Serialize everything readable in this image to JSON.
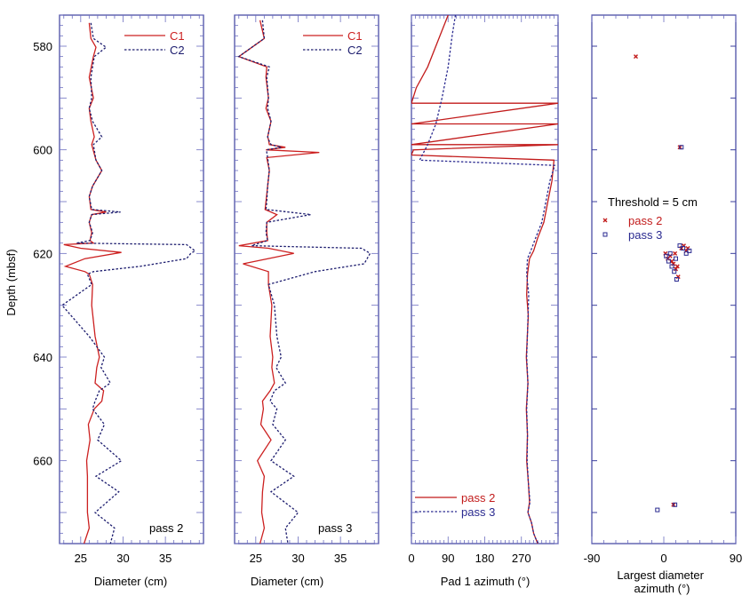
{
  "colors": {
    "frame": "#3c3f9e",
    "tick": "#6c6ec0",
    "c1": "#cc2020",
    "c2": "#1c1c6e",
    "pass2": "#c21b1b",
    "pass3": "#2a2a90",
    "text": "#000000"
  },
  "chart_data": [
    {
      "type": "line",
      "panel": "caliper-pass-2",
      "xlabel": "Diameter (cm)",
      "ylabel": "Depth (mbsf)",
      "xlim": [
        22.5,
        39.5
      ],
      "ylim": [
        676,
        574
      ],
      "xticks": [
        "25",
        "30",
        "35"
      ],
      "yticks": [
        "580",
        "600",
        "620",
        "640",
        "660"
      ],
      "legend": [
        "C1",
        "C2"
      ],
      "annotation": "pass 2",
      "series": [
        {
          "name": "C1",
          "x": [
            26.0,
            26.2,
            26.8,
            26.5,
            26.0,
            26.5,
            26.0,
            26.2,
            26.6,
            26.3,
            26.8,
            27.5,
            26.4,
            26.0,
            26.2,
            28.0,
            26.3,
            26.0,
            26.3,
            26.1,
            26.5,
            23.0,
            25.0,
            29.8,
            25.5,
            23.2,
            25.5,
            26.0,
            26.4,
            26.3,
            26.7,
            27.2,
            26.9,
            26.7,
            27.7,
            27.5,
            26.6,
            25.9,
            26.1,
            25.7,
            25.8,
            25.8,
            25.8,
            26.0,
            25.4
          ],
          "y": [
            575.5,
            578.5,
            580.2,
            582.0,
            586.0,
            590.0,
            592.0,
            594.5,
            597.5,
            599.0,
            602.0,
            604.0,
            607.0,
            609.0,
            611.5,
            612.0,
            612.5,
            614.0,
            616.0,
            617.5,
            618.0,
            618.3,
            619.0,
            619.8,
            621.0,
            622.5,
            623.5,
            624.0,
            626.0,
            630.0,
            636.0,
            640.0,
            642.0,
            645.0,
            646.5,
            648.5,
            650.0,
            653.0,
            656.0,
            660.0,
            663.0,
            666.0,
            670.0,
            673.0,
            676.0
          ]
        },
        {
          "name": "C2",
          "x": [
            26.2,
            26.5,
            28.0,
            26.6,
            26.2,
            26.3,
            26.0,
            26.4,
            27.5,
            26.5,
            26.8,
            27.5,
            26.4,
            26.0,
            26.3,
            29.7,
            26.3,
            26.0,
            26.4,
            26.1,
            24.5,
            37.5,
            38.5,
            38.0,
            37.5,
            32.0,
            26.5,
            25.8,
            26.3,
            22.8,
            26.0,
            27.8,
            27.4,
            28.5,
            27.2,
            26.7,
            26.4,
            27.8,
            27.0,
            29.8,
            26.8,
            29.5,
            26.7,
            29.0,
            28.5
          ],
          "y": [
            575.5,
            578.5,
            580.2,
            582.0,
            586.0,
            590.0,
            592.0,
            594.5,
            597.5,
            599.0,
            602.0,
            604.0,
            607.0,
            609.0,
            611.5,
            612.0,
            612.5,
            614.0,
            616.0,
            617.5,
            618.0,
            618.3,
            619.5,
            620.0,
            621.0,
            622.5,
            623.5,
            624.0,
            626.0,
            630.0,
            636.0,
            640.0,
            642.0,
            645.0,
            646.5,
            648.5,
            650.0,
            653.0,
            656.0,
            660.0,
            663.0,
            666.0,
            670.0,
            673.0,
            676.0
          ]
        }
      ]
    },
    {
      "type": "line",
      "panel": "caliper-pass-3",
      "xlabel": "Diameter (cm)",
      "xlim": [
        22.5,
        39.5
      ],
      "ylim": [
        676,
        574
      ],
      "xticks": [
        "25",
        "30",
        "35"
      ],
      "legend": [
        "C1",
        "C2"
      ],
      "annotation": "pass 3",
      "series": [
        {
          "name": "C1",
          "x": [
            25.5,
            26.0,
            23.0,
            26.3,
            26.2,
            26.5,
            26.2,
            26.8,
            26.4,
            26.5,
            26.6,
            28.5,
            26.2,
            32.5,
            26.3,
            26.6,
            26.4,
            26.2,
            26.1,
            27.5,
            26.3,
            26.3,
            26.4,
            23.0,
            26.5,
            29.5,
            23.5,
            26.5,
            26.5,
            26.9,
            26.7,
            27.0,
            26.9,
            27.2,
            26.7,
            25.8,
            25.9,
            25.6,
            26.8,
            25.2,
            26.0,
            25.8,
            25.7,
            26.0,
            25.5
          ],
          "y": [
            575.0,
            578.5,
            582.0,
            584.0,
            586.0,
            590.0,
            592.0,
            594.5,
            597.5,
            598.0,
            599.0,
            599.5,
            600.0,
            600.5,
            601.5,
            604.0,
            607.0,
            610.0,
            611.5,
            612.5,
            614.0,
            616.0,
            617.5,
            618.5,
            619.0,
            620.0,
            622.0,
            623.5,
            626.0,
            630.0,
            636.0,
            640.0,
            642.0,
            645.0,
            646.5,
            648.5,
            650.0,
            653.0,
            656.0,
            660.0,
            663.0,
            666.0,
            670.0,
            673.0,
            676.0
          ]
        },
        {
          "name": "C2",
          "x": [
            25.8,
            26.0,
            23.0,
            26.6,
            26.3,
            26.5,
            26.4,
            26.8,
            26.4,
            26.5,
            26.8,
            28.0,
            26.3,
            26.3,
            26.4,
            26.6,
            26.4,
            26.3,
            26.2,
            31.5,
            26.3,
            26.2,
            26.4,
            24.5,
            37.5,
            38.5,
            37.8,
            32.0,
            26.5,
            27.2,
            27.5,
            28.0,
            27.4,
            28.5,
            27.2,
            26.7,
            27.5,
            27.0,
            28.5,
            26.8,
            29.5,
            26.8,
            30.0,
            28.5,
            28.8
          ],
          "y": [
            575.0,
            578.5,
            582.0,
            584.0,
            586.0,
            590.0,
            592.0,
            594.5,
            597.5,
            598.0,
            599.0,
            599.5,
            600.0,
            600.5,
            601.5,
            604.0,
            607.0,
            610.0,
            611.5,
            612.5,
            614.0,
            616.0,
            617.5,
            618.5,
            619.0,
            620.0,
            622.0,
            623.5,
            626.0,
            630.0,
            636.0,
            640.0,
            642.0,
            645.0,
            646.5,
            648.5,
            650.0,
            653.0,
            656.0,
            660.0,
            663.0,
            666.0,
            670.0,
            673.0,
            676.0
          ]
        }
      ]
    },
    {
      "type": "line",
      "panel": "pad-1-azimuth",
      "xlabel": "Pad 1 azimuth (°)",
      "xlim": [
        0,
        360
      ],
      "ylim": [
        676,
        574
      ],
      "xticks": [
        "0",
        "90",
        "180",
        "270"
      ],
      "legend": [
        "pass 2",
        "pass 3"
      ],
      "series": [
        {
          "name": "pass 2",
          "x": [
            90,
            70,
            40,
            12,
            0,
            360,
            0,
            360,
            0,
            360,
            5,
            0,
            350,
            345,
            335,
            325,
            310,
            300,
            290,
            285,
            283,
            287,
            282,
            286,
            282,
            285,
            283,
            287,
            290,
            286,
            295,
            300,
            305,
            310
          ],
          "y": [
            574.0,
            578.0,
            584.0,
            588.0,
            591.0,
            591.0,
            595.0,
            595.0,
            599.0,
            599.0,
            600.0,
            601.0,
            602.0,
            606.0,
            610.0,
            614.0,
            617.0,
            619.5,
            621.0,
            624.0,
            628.0,
            632.0,
            640.0,
            645.0,
            650.0,
            655.0,
            660.0,
            664.0,
            668.0,
            670.0,
            672.0,
            674.0,
            675.0,
            676.0
          ]
        },
        {
          "name": "pass 3",
          "x": [
            108,
            100,
            90,
            75,
            60,
            40,
            20,
            352,
            340,
            330,
            320,
            305,
            293,
            285,
            283,
            288,
            283,
            286,
            283,
            285,
            284,
            287,
            291,
            286,
            295,
            300,
            305,
            312
          ],
          "y": [
            574.0,
            578.0,
            584.0,
            590.0,
            595.0,
            599.0,
            602.0,
            603.0,
            606.0,
            610.0,
            614.0,
            617.0,
            619.5,
            621.0,
            624.0,
            628.0,
            640.0,
            645.0,
            650.0,
            655.0,
            660.0,
            664.0,
            668.0,
            670.0,
            672.0,
            674.0,
            675.0,
            676.0
          ]
        }
      ]
    },
    {
      "type": "scatter",
      "panel": "largest-diameter-azimuth",
      "xlabel": "Largest diameter azimuth (°)",
      "xlim": [
        -90,
        90
      ],
      "ylim": [
        676,
        574
      ],
      "xticks": [
        "-90",
        "0",
        "90"
      ],
      "annotation": "Threshold = 5 cm",
      "legend": [
        "pass 2",
        "pass 3"
      ],
      "series": [
        {
          "name": "pass 2",
          "x": [
            -35,
            20,
            2,
            5,
            8,
            12,
            15,
            18,
            22,
            25,
            30,
            10,
            14,
            28,
            17
          ],
          "y": [
            582.0,
            599.5,
            620.0,
            621.0,
            620.5,
            622.0,
            623.0,
            624.5,
            619.0,
            618.5,
            619.0,
            621.5,
            620.0,
            619.5,
            622.5
          ],
          "extra_x": [
            12
          ],
          "extra_y": [
            668.5
          ]
        },
        {
          "name": "pass 3",
          "x": [
            22,
            3,
            6,
            10,
            13,
            16,
            20,
            24,
            28,
            32,
            8,
            15,
            -8
          ],
          "y": [
            599.5,
            620.5,
            621.5,
            622.5,
            623.5,
            625.0,
            618.5,
            619.0,
            620.0,
            619.5,
            620.0,
            621.0,
            669.5
          ],
          "extra_x": [
            14
          ],
          "extra_y": [
            668.5
          ]
        }
      ]
    }
  ]
}
